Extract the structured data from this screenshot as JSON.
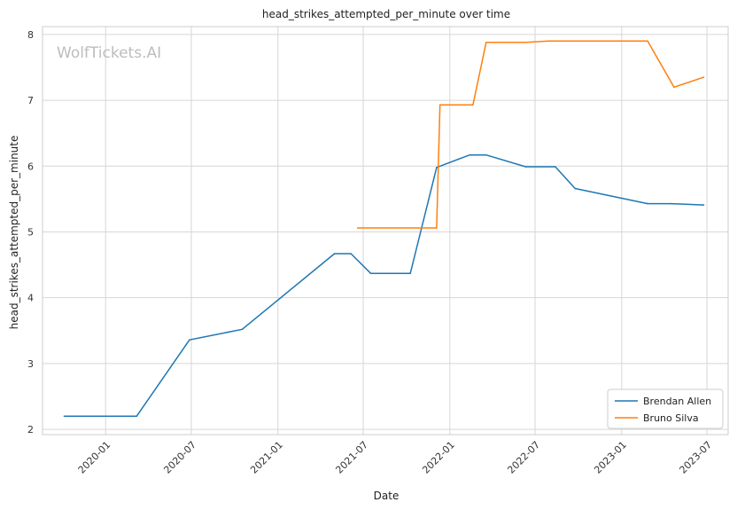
{
  "watermark": "WolfTickets.AI",
  "chart_data": {
    "type": "line",
    "title": "head_strikes_attempted_per_minute over time",
    "xlabel": "Date",
    "ylabel": "head_strikes_attempted_per_minute",
    "x_ticks": [
      "2020-01",
      "2020-07",
      "2021-01",
      "2021-07",
      "2022-01",
      "2022-07",
      "2023-01",
      "2023-07"
    ],
    "y_ticks": [
      2,
      3,
      4,
      5,
      6,
      7,
      8
    ],
    "xlim": [
      "2019-08-20",
      "2023-08-15"
    ],
    "ylim": [
      1.92,
      8.12
    ],
    "grid": true,
    "legend_position": "lower-right",
    "series": [
      {
        "name": "Brendan Allen",
        "color": "#1f77b4",
        "points": [
          [
            "2019-10-05",
            2.2
          ],
          [
            "2020-03-07",
            2.2
          ],
          [
            "2020-06-27",
            3.36
          ],
          [
            "2020-10-17",
            3.52
          ],
          [
            "2021-05-01",
            4.67
          ],
          [
            "2021-06-05",
            4.67
          ],
          [
            "2021-07-17",
            4.37
          ],
          [
            "2021-10-09",
            4.37
          ],
          [
            "2021-12-04",
            5.98
          ],
          [
            "2022-02-12",
            6.17
          ],
          [
            "2022-03-19",
            6.17
          ],
          [
            "2022-06-11",
            5.99
          ],
          [
            "2022-08-13",
            5.99
          ],
          [
            "2022-09-24",
            5.66
          ],
          [
            "2023-02-25",
            5.43
          ],
          [
            "2023-04-15",
            5.43
          ],
          [
            "2023-06-24",
            5.41
          ]
        ]
      },
      {
        "name": "Bruno Silva",
        "color": "#ff7f0e",
        "points": [
          [
            "2021-06-19",
            5.06
          ],
          [
            "2021-12-04",
            5.06
          ],
          [
            "2021-12-11",
            6.93
          ],
          [
            "2022-02-19",
            6.93
          ],
          [
            "2022-03-19",
            7.88
          ],
          [
            "2022-06-11",
            7.88
          ],
          [
            "2022-07-30",
            7.9
          ],
          [
            "2023-02-25",
            7.9
          ],
          [
            "2023-04-22",
            7.2
          ],
          [
            "2023-06-24",
            7.35
          ]
        ]
      }
    ]
  }
}
